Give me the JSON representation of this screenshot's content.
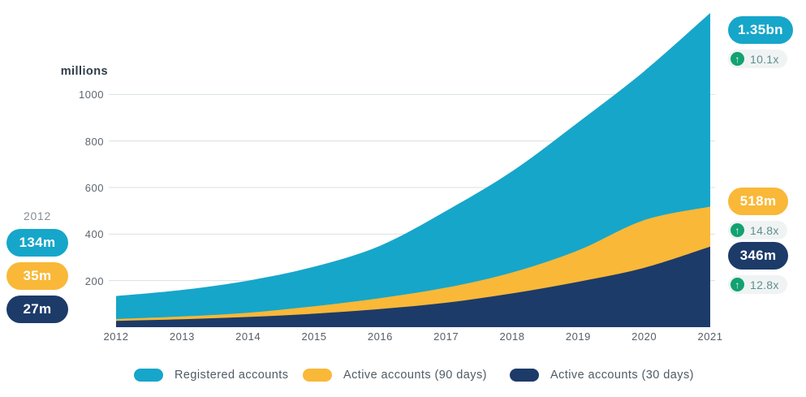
{
  "chart_data": {
    "type": "area",
    "mode": "overlapping",
    "title": "",
    "unit_label": "millions",
    "xlabel": "",
    "ylabel": "millions",
    "x": [
      2012,
      2013,
      2014,
      2015,
      2016,
      2017,
      2018,
      2019,
      2020,
      2021
    ],
    "series": [
      {
        "name": "Registered accounts",
        "color": "#16a6ca",
        "values": [
          134,
          160,
          200,
          260,
          350,
          500,
          670,
          880,
          1100,
          1350
        ]
      },
      {
        "name": "Active accounts (90 days)",
        "color": "#f9b838",
        "values": [
          35,
          46,
          62,
          90,
          125,
          170,
          235,
          330,
          460,
          518
        ]
      },
      {
        "name": "Active accounts (30 days)",
        "color": "#1d3b69",
        "values": [
          27,
          34,
          44,
          58,
          78,
          105,
          145,
          195,
          255,
          346
        ]
      }
    ],
    "y_ticks": [
      200,
      400,
      600,
      800,
      1000
    ],
    "ylim": [
      0,
      1400
    ],
    "grid": true,
    "legend_position": "bottom"
  },
  "left_callout": {
    "year": "2012",
    "items": [
      {
        "label": "134m",
        "color": "#16a6ca"
      },
      {
        "label": "35m",
        "color": "#f9b838"
      },
      {
        "label": "27m",
        "color": "#1d3b69"
      }
    ]
  },
  "right_callouts": [
    {
      "label": "1.35bn",
      "color": "#16a6ca",
      "growth": "10.1x"
    },
    {
      "label": "518m",
      "color": "#f9b838",
      "growth": "14.8x"
    },
    {
      "label": "346m",
      "color": "#1d3b69",
      "growth": "12.8x"
    }
  ],
  "colors": {
    "teal": "#16a6ca",
    "yellow": "#f9b838",
    "navy": "#1d3b69",
    "growth_green": "#12a271",
    "growth_pill_bg": "#f0f3f3",
    "growth_text": "#5f8e8e",
    "gridline": "#dcdfe2",
    "background": "#ffffff"
  }
}
